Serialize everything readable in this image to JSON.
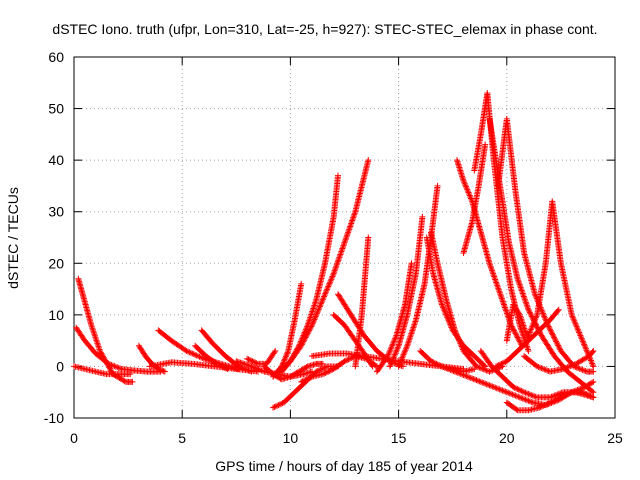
{
  "chart_data": {
    "type": "scatter",
    "title": "dSTEC Iono. truth (ufpr, Lon=310, Lat=-25, h=927): STEC-STEC_elemax in phase cont.",
    "xlabel": "GPS time / hours of day 185 of year 2014",
    "ylabel": "dSTEC  / TECUs",
    "xlim": [
      0,
      25
    ],
    "ylim": [
      -10,
      60
    ],
    "xticks": [
      0,
      5,
      10,
      15,
      20,
      25
    ],
    "yticks": [
      -10,
      0,
      10,
      20,
      30,
      40,
      50,
      60
    ],
    "xtick_labels": [
      "0",
      "5",
      "10",
      "15",
      "20",
      "25"
    ],
    "ytick_labels": [
      "-10",
      "0",
      "10",
      "20",
      "30",
      "40",
      "50",
      "60"
    ],
    "grid": true,
    "marker": "+",
    "color": "#ff0000",
    "series": [
      {
        "x": [
          0.2,
          0.4,
          0.8,
          1.2,
          1.8,
          2.4,
          2.7
        ],
        "y": [
          17,
          14,
          8,
          3,
          -1.5,
          -3,
          -3
        ]
      },
      {
        "x": [
          0.0,
          0.5,
          1.0,
          1.5,
          2.0,
          2.6
        ],
        "y": [
          0,
          -0.5,
          -1.0,
          -1.5,
          -1.5,
          -1.5
        ]
      },
      {
        "x": [
          0.1,
          0.5,
          1.0,
          1.6,
          2.2,
          2.8,
          3.4,
          4.0
        ],
        "y": [
          7.5,
          5,
          2.5,
          0.5,
          -0.5,
          -0.8,
          -1.0,
          -1.0
        ]
      },
      {
        "x": [
          3.0,
          3.3,
          3.6,
          3.9,
          4.2
        ],
        "y": [
          4,
          2,
          0.5,
          -0.5,
          -1.0
        ]
      },
      {
        "x": [
          3.9,
          4.5,
          5.2,
          6.0,
          6.8,
          7.6
        ],
        "y": [
          7,
          5,
          3,
          1.5,
          0.5,
          -0.5
        ]
      },
      {
        "x": [
          3.5,
          4.5,
          5.5,
          6.5,
          7.5,
          8.5
        ],
        "y": [
          0,
          0.8,
          0.5,
          0.0,
          -0.5,
          -1.0
        ]
      },
      {
        "x": [
          5.9,
          6.4,
          7.0,
          7.6,
          8.2
        ],
        "y": [
          7,
          4.5,
          2,
          0,
          -1.0
        ]
      },
      {
        "x": [
          5.6,
          6.1,
          6.6,
          7.1
        ],
        "y": [
          4,
          2,
          0.5,
          -0.5
        ]
      },
      {
        "x": [
          7.5,
          8.2,
          8.8,
          9.4,
          10.0,
          10.6,
          11.0
        ],
        "y": [
          1,
          0,
          -1,
          -1.5,
          -2,
          -1.5,
          -1.0
        ]
      },
      {
        "x": [
          8.0,
          8.5,
          8.9,
          9.3
        ],
        "y": [
          1.5,
          0.5,
          0.5,
          3
        ]
      },
      {
        "x": [
          8.8,
          9.2,
          9.6,
          10.0,
          10.4,
          10.8,
          11.2,
          11.5
        ],
        "y": [
          0,
          -1.5,
          -2.5,
          -2.0,
          -1.0,
          0.0,
          0.5,
          0.5
        ]
      },
      {
        "x": [
          9.2,
          9.6,
          9.9,
          10.2,
          10.5
        ],
        "y": [
          -2,
          0,
          3,
          9,
          16
        ]
      },
      {
        "x": [
          9.6,
          10.0,
          10.4,
          10.8,
          11.2,
          11.6,
          12.0,
          12.2
        ],
        "y": [
          -1,
          1,
          4,
          8,
          13,
          20,
          29,
          37
        ]
      },
      {
        "x": [
          9.5,
          10.0,
          10.5,
          11.0,
          11.5,
          12.0,
          12.5,
          13.0,
          13.3,
          13.6
        ],
        "y": [
          -1,
          1,
          4,
          8,
          13,
          18,
          24,
          30,
          35,
          40
        ]
      },
      {
        "x": [
          9.2,
          9.7,
          10.2,
          10.7,
          11.2,
          11.7,
          12.2
        ],
        "y": [
          -8,
          -7,
          -5,
          -3,
          -1,
          0,
          0
        ]
      },
      {
        "x": [
          10.5,
          11.0,
          11.5,
          12.0,
          12.5,
          13.0,
          13.5,
          14.0
        ],
        "y": [
          -3,
          -2,
          -1.5,
          -0.5,
          1,
          2,
          1.5,
          0
        ]
      },
      {
        "x": [
          11.0,
          11.8,
          12.6,
          13.4,
          14.2,
          15.0,
          16.0,
          17.0,
          18.0
        ],
        "y": [
          2,
          2.5,
          2.5,
          2.0,
          1.5,
          1.0,
          0.5,
          0,
          -0.5
        ]
      },
      {
        "x": [
          12.0,
          12.5,
          13.0,
          13.5,
          13.8
        ],
        "y": [
          10,
          8,
          5,
          2,
          0
        ]
      },
      {
        "x": [
          13.0,
          13.3,
          13.6
        ],
        "y": [
          0,
          10,
          25
        ]
      },
      {
        "x": [
          12.2,
          12.8,
          13.4,
          14.0,
          14.6,
          15.2
        ],
        "y": [
          14,
          10,
          6,
          3,
          1,
          0
        ]
      },
      {
        "x": [
          14.0,
          14.5,
          14.9,
          15.3,
          15.6
        ],
        "y": [
          -1,
          2,
          6,
          12,
          20
        ]
      },
      {
        "x": [
          14.6,
          15.0,
          15.4,
          15.8,
          16.1
        ],
        "y": [
          0,
          4,
          10,
          18,
          29
        ]
      },
      {
        "x": [
          15.0,
          15.4,
          15.8,
          16.2,
          16.5,
          16.8
        ],
        "y": [
          0,
          4,
          9,
          16,
          25,
          35
        ]
      },
      {
        "x": [
          16.5,
          16.8,
          17.2,
          17.6,
          18.0,
          18.6,
          19.2,
          19.8
        ],
        "y": [
          26,
          20,
          13,
          7,
          3,
          0,
          -1,
          0
        ]
      },
      {
        "x": [
          16.3,
          16.6,
          17.0,
          17.5,
          18.0,
          18.5,
          19.0
        ],
        "y": [
          25,
          18,
          12,
          7,
          4,
          2,
          0
        ]
      },
      {
        "x": [
          16.0,
          16.5,
          17.0,
          17.5,
          18.0,
          18.5
        ],
        "y": [
          3,
          1,
          0,
          -0.5,
          -1.0,
          -0.5
        ]
      },
      {
        "x": [
          17.0,
          17.6,
          18.2,
          18.8,
          19.4,
          20.0,
          20.6,
          21.2,
          21.8,
          22.4,
          23.0,
          23.6,
          24.0
        ],
        "y": [
          0,
          -1,
          -2,
          -3,
          -4,
          -5,
          -6,
          -7,
          -7.5,
          -6.5,
          -5,
          -4,
          -3
        ]
      },
      {
        "x": [
          17.7,
          18.0,
          18.4,
          18.8,
          19.2,
          19.7,
          20.2,
          20.7
        ],
        "y": [
          40,
          36,
          32,
          26,
          20,
          14,
          8,
          4
        ]
      },
      {
        "x": [
          18.0,
          18.4,
          18.7,
          19.0
        ],
        "y": [
          22,
          28,
          35,
          43
        ]
      },
      {
        "x": [
          18.5,
          18.8,
          19.1,
          19.4,
          19.8,
          20.2,
          20.6,
          21.0
        ],
        "y": [
          38,
          45,
          53,
          40,
          25,
          15,
          8,
          3
        ]
      },
      {
        "x": [
          19.2,
          19.5,
          19.8,
          20.1,
          20.5,
          21.0,
          21.6,
          22.2,
          22.8,
          23.4,
          24.0
        ],
        "y": [
          48,
          40,
          32,
          24,
          17,
          11,
          6,
          2,
          -1,
          -3,
          -5
        ]
      },
      {
        "x": [
          19.6,
          20.0,
          20.4,
          20.8,
          21.3,
          21.9,
          22.5,
          23.1,
          23.7,
          24.0
        ],
        "y": [
          35,
          48,
          34,
          22,
          14,
          8,
          3,
          0,
          -1,
          -1
        ]
      },
      {
        "x": [
          18.8,
          19.3,
          19.8,
          20.3,
          20.8,
          21.4,
          22.0,
          22.6,
          23.2,
          24.0
        ],
        "y": [
          3,
          0,
          -2,
          -4,
          -5,
          -6,
          -6,
          -5,
          -5,
          -6
        ]
      },
      {
        "x": [
          20.0,
          20.5,
          21.0,
          21.5,
          22.0,
          22.5,
          23.0,
          23.5,
          24.0
        ],
        "y": [
          -7,
          -8.5,
          -8.5,
          -8,
          -7,
          -6,
          -5,
          -5,
          -6
        ]
      },
      {
        "x": [
          21.0,
          21.4,
          21.8,
          22.1,
          22.5,
          23.0,
          23.6,
          24.0
        ],
        "y": [
          6,
          10,
          20,
          32,
          20,
          10,
          4,
          0
        ]
      },
      {
        "x": [
          20.8,
          21.4,
          22.0,
          22.6,
          23.2,
          23.8,
          24.0
        ],
        "y": [
          2,
          0,
          -1,
          -0.5,
          0.5,
          2,
          3
        ]
      },
      {
        "x": [
          19.5,
          20.0,
          20.5,
          21.0,
          21.5,
          22.0,
          22.4
        ],
        "y": [
          0,
          1,
          3,
          5,
          7,
          9,
          11
        ]
      },
      {
        "x": [
          20.0,
          20.3,
          20.6,
          21.0
        ],
        "y": [
          5,
          12,
          10,
          5
        ]
      }
    ]
  }
}
